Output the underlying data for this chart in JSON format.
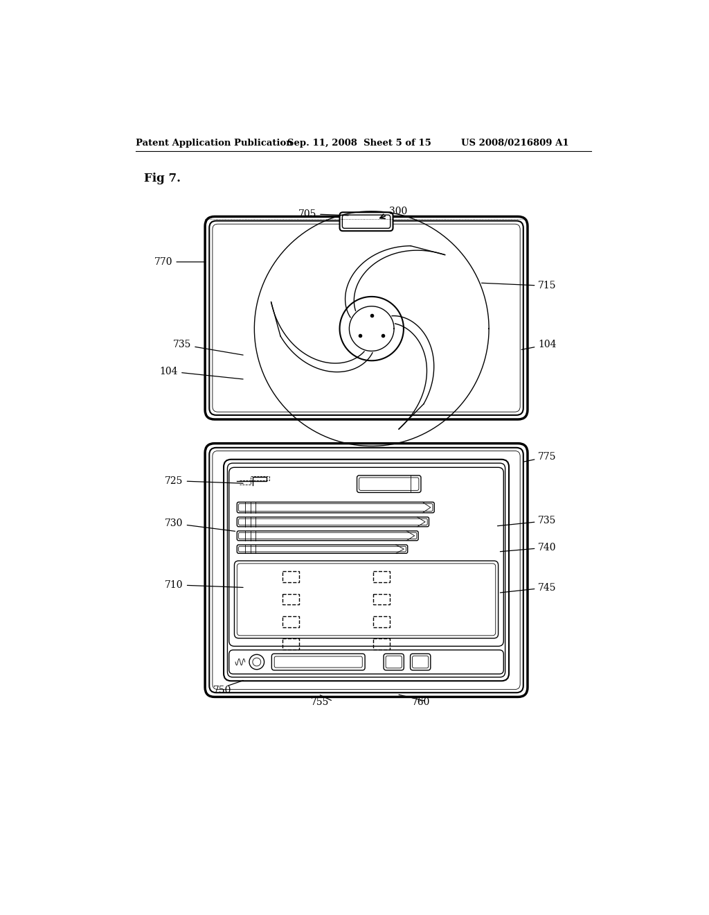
{
  "bg_color": "#ffffff",
  "line_color": "#000000",
  "header_left": "Patent Application Publication",
  "header_mid": "Sep. 11, 2008  Sheet 5 of 15",
  "header_right": "US 2008/0216809 A1",
  "fig_label": "Fig 7."
}
